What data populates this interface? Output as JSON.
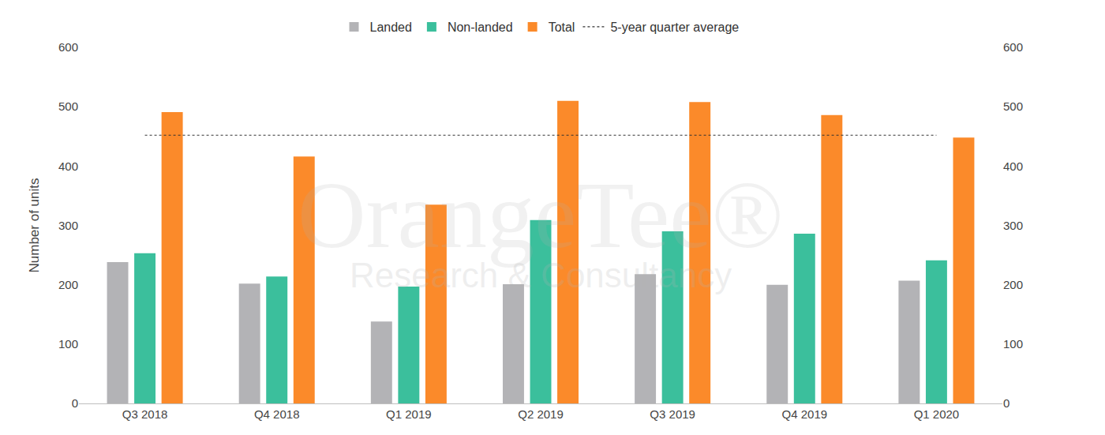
{
  "chart_data": {
    "type": "bar",
    "y_label": "Number of units",
    "categories": [
      "Q3 2018",
      "Q4 2018",
      "Q1 2019",
      "Q2 2019",
      "Q3 2019",
      "Q4 2019",
      "Q1 2020"
    ],
    "series": [
      {
        "name": "Landed",
        "color": "#b3b3b6",
        "values": [
          238,
          202,
          138,
          201,
          218,
          200,
          207
        ]
      },
      {
        "name": "Non-landed",
        "color": "#3bbf9c",
        "values": [
          253,
          214,
          197,
          309,
          290,
          286,
          241
        ]
      },
      {
        "name": "Total",
        "color": "#fb8a2a",
        "values": [
          491,
          416,
          335,
          510,
          508,
          486,
          448
        ]
      },
      {
        "name": "5-year quarter average",
        "type": "line",
        "line_style": "dotted",
        "color": "#333333",
        "axis": "y2",
        "values": [
          452,
          452,
          452,
          452,
          452,
          452,
          452
        ]
      }
    ],
    "ylim": [
      0,
      600
    ],
    "yticks": [
      0,
      100,
      200,
      300,
      400,
      500,
      600
    ],
    "y2lim": [
      0,
      600
    ],
    "y2ticks": [
      0,
      100,
      200,
      300,
      400,
      500,
      600
    ],
    "grid": false,
    "legend": "top",
    "annotations": [
      "OrangeTee®",
      "Research & Consultancy"
    ]
  }
}
